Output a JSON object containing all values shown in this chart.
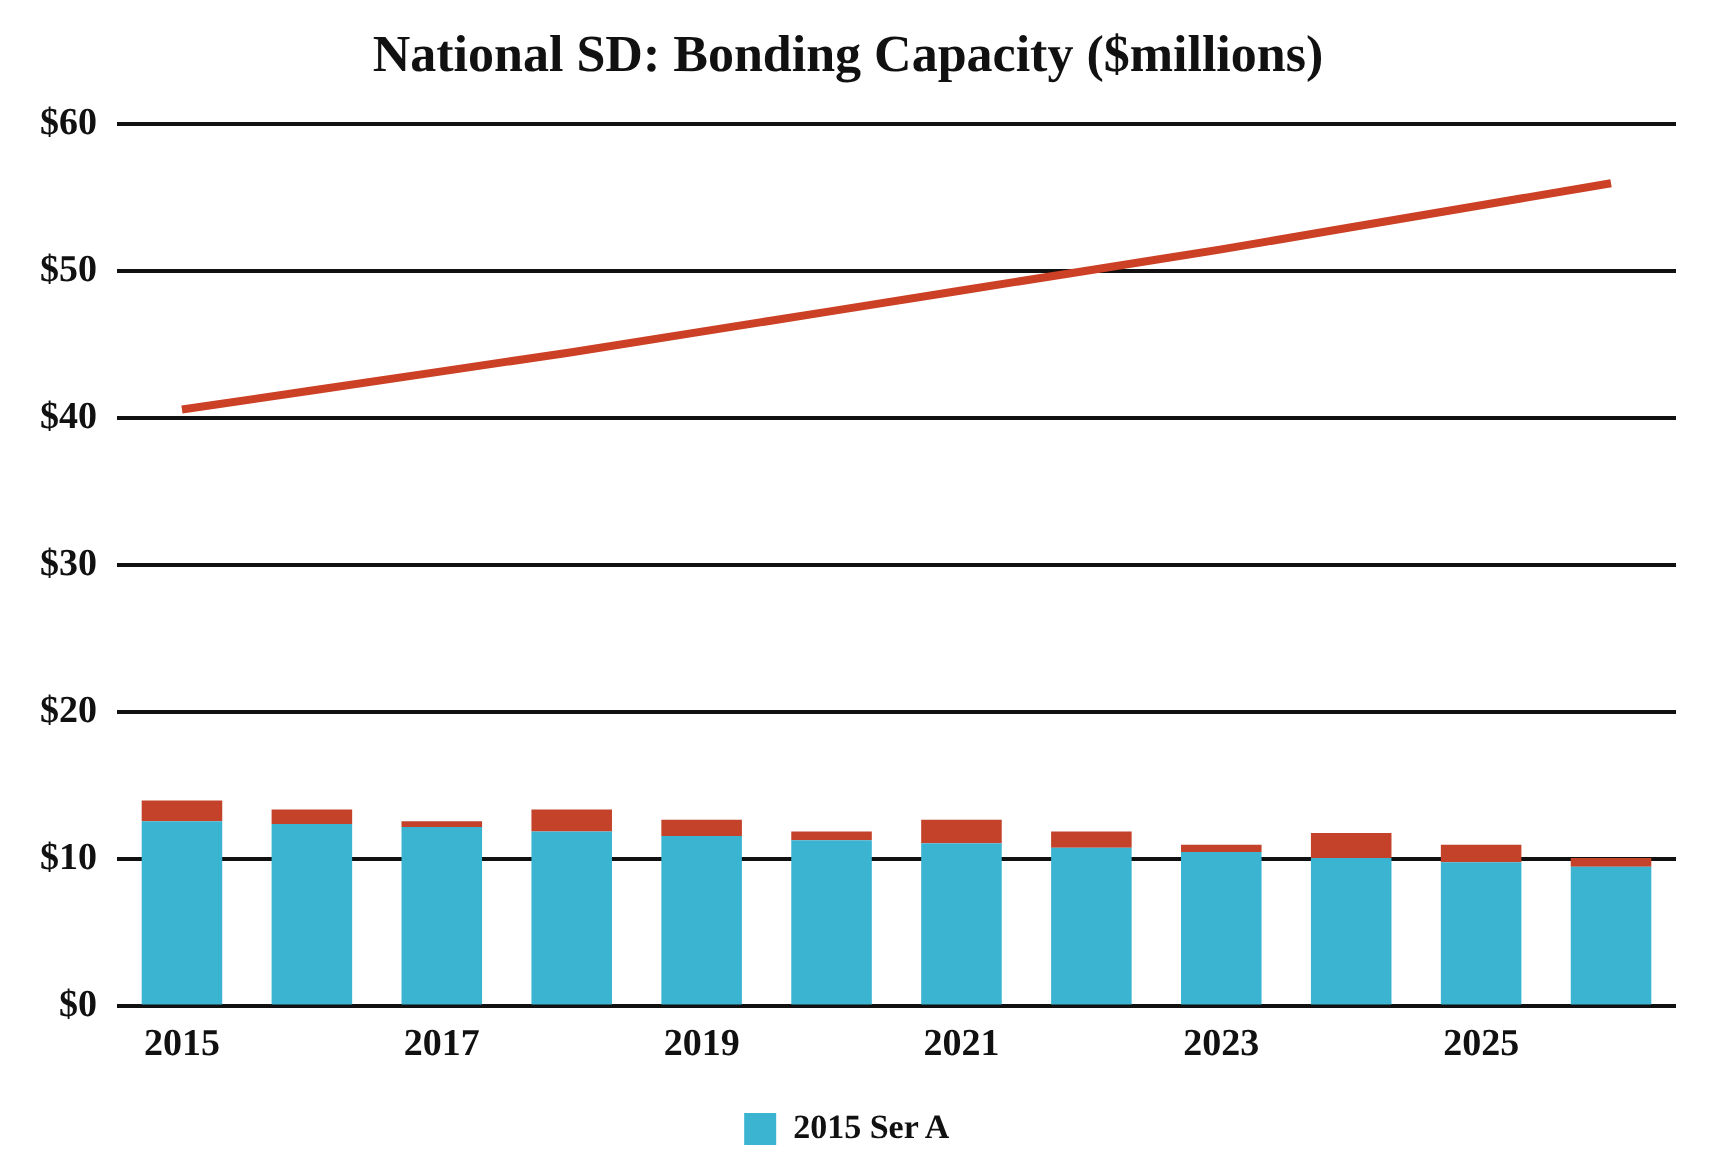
{
  "chart_data": {
    "type": "bar",
    "title": "National SD: Bonding Capacity ($millions)",
    "stacked": true,
    "categories": [
      "2015",
      null,
      "2017",
      null,
      "2019",
      null,
      "2021",
      null,
      "2023",
      null,
      "2025",
      null
    ],
    "series": [
      {
        "name": "2015 Ser A",
        "color": "#3bb4d2",
        "values": [
          12.6,
          12.4,
          12.2,
          11.9,
          11.6,
          11.3,
          11.1,
          10.8,
          10.5,
          10.1,
          9.8,
          9.5
        ]
      },
      {
        "color": "#c4422a",
        "values": [
          1.4,
          1.0,
          0.4,
          1.5,
          1.1,
          0.6,
          1.6,
          1.1,
          0.5,
          1.7,
          1.2,
          0.6
        ]
      },
      {
        "type": "line",
        "color": "#cc4026",
        "values": [
          40.6,
          41.9,
          43.2,
          44.5,
          45.9,
          47.3,
          48.7,
          50.1,
          51.5,
          53.0,
          54.5,
          56.0
        ]
      }
    ],
    "ylim": [
      0,
      60
    ],
    "yticks": [
      {
        "value": 0,
        "label": "$0"
      },
      {
        "value": 10,
        "label": "$10"
      },
      {
        "value": 20,
        "label": "$20"
      },
      {
        "value": 30,
        "label": "$30"
      },
      {
        "value": 40,
        "label": "$40"
      },
      {
        "value": 50,
        "label": "$50"
      },
      {
        "value": 60,
        "label": "$60"
      }
    ],
    "grid": "y",
    "legend": "bottom",
    "marker": "none"
  }
}
